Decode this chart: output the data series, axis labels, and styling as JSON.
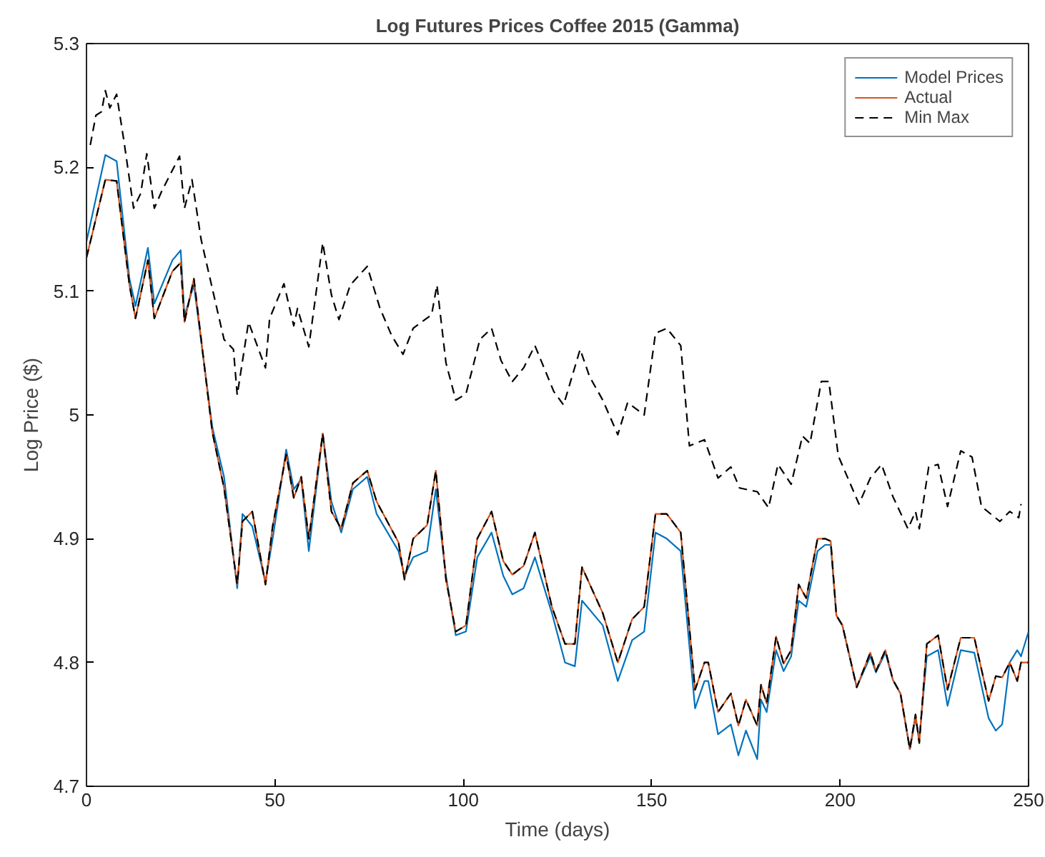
{
  "chart_data": {
    "type": "line",
    "title": "Log Futures Prices Coffee 2015 (Gamma)",
    "xlabel": "Time (days)",
    "ylabel": "Log Price ($)",
    "x": [
      0,
      5,
      8,
      11.4,
      13,
      16.3,
      18,
      22.8,
      25,
      26,
      28.5,
      33.4,
      36.5,
      40,
      41.4,
      44,
      47.5,
      49.4,
      53,
      55,
      57,
      59,
      62.7,
      65,
      67.6,
      70.7,
      74.5,
      77,
      82.8,
      84.4,
      86.7,
      90.4,
      92.7,
      95.4,
      98,
      100.7,
      103.7,
      107.5,
      110.6,
      113,
      116,
      119,
      123.5,
      127,
      129.6,
      131.5,
      137,
      141,
      144.8,
      148,
      151,
      154,
      157.7,
      161.5,
      164,
      165,
      167.6,
      171,
      173,
      175,
      178,
      179,
      180.5,
      183,
      185,
      187,
      189,
      191,
      194,
      196,
      197.5,
      199,
      200.6,
      204.4,
      208,
      209.5,
      212,
      214,
      216,
      218.5,
      220,
      221,
      223,
      226,
      228.5,
      232,
      235.6,
      239.4,
      241.3,
      243,
      245,
      247,
      248,
      250
    ],
    "series": [
      {
        "name": "Model Prices",
        "color": "#0072bd",
        "line_style": "solid",
        "values": [
          5.14,
          5.21,
          5.205,
          5.11,
          5.088,
          5.135,
          5.09,
          5.125,
          5.133,
          5.08,
          5.105,
          4.99,
          4.95,
          4.86,
          4.92,
          4.91,
          4.865,
          4.9,
          4.972,
          4.94,
          4.948,
          4.89,
          4.985,
          4.93,
          4.905,
          4.94,
          4.95,
          4.92,
          4.89,
          4.87,
          4.885,
          4.89,
          4.94,
          4.87,
          4.822,
          4.825,
          4.885,
          4.905,
          4.87,
          4.855,
          4.86,
          4.885,
          4.84,
          4.8,
          4.797,
          4.85,
          4.83,
          4.785,
          4.818,
          4.825,
          4.905,
          4.9,
          4.89,
          4.763,
          4.785,
          4.785,
          4.742,
          4.75,
          4.725,
          4.745,
          4.722,
          4.77,
          4.76,
          4.81,
          4.793,
          4.805,
          4.85,
          4.845,
          4.89,
          4.895,
          4.895,
          4.838,
          4.83,
          4.78,
          4.805,
          4.792,
          4.808,
          4.786,
          4.775,
          4.73,
          4.755,
          4.738,
          4.805,
          4.81,
          4.765,
          4.81,
          4.808,
          4.755,
          4.745,
          4.75,
          4.8,
          4.81,
          4.805,
          4.825
        ]
      },
      {
        "name": "Actual",
        "color": "#d95319",
        "line_style": "solid",
        "values": [
          5.127,
          5.19,
          5.189,
          5.105,
          5.078,
          5.125,
          5.078,
          5.116,
          5.123,
          5.075,
          5.11,
          4.986,
          4.941,
          4.863,
          4.914,
          4.922,
          4.863,
          4.91,
          4.968,
          4.933,
          4.95,
          4.9,
          4.985,
          4.922,
          4.908,
          4.945,
          4.955,
          4.93,
          4.897,
          4.867,
          4.9,
          4.911,
          4.955,
          4.867,
          4.825,
          4.83,
          4.9,
          4.922,
          4.882,
          4.871,
          4.878,
          4.905,
          4.845,
          4.815,
          4.815,
          4.877,
          4.84,
          4.8,
          4.835,
          4.845,
          4.92,
          4.92,
          4.905,
          4.778,
          4.8,
          4.8,
          4.76,
          4.775,
          4.749,
          4.77,
          4.749,
          4.782,
          4.767,
          4.821,
          4.799,
          4.81,
          4.863,
          4.852,
          4.9,
          4.9,
          4.898,
          4.838,
          4.83,
          4.78,
          4.808,
          4.793,
          4.81,
          4.786,
          4.775,
          4.73,
          4.758,
          4.735,
          4.815,
          4.822,
          4.778,
          4.82,
          4.82,
          4.769,
          4.789,
          4.788,
          4.8,
          4.785,
          4.8,
          4.8
        ]
      },
      {
        "name": "Min Max",
        "color": "#000000",
        "line_style": "dashed",
        "x": [
          1,
          2.5,
          4,
          5,
          6.2,
          8,
          10,
          12.5,
          14.4,
          16,
          18,
          20,
          24.7,
          26,
          28,
          30.4,
          34,
          36.5,
          39,
          40,
          43,
          47.5,
          48.6,
          52.4,
          55,
          56,
          59,
          62.7,
          65,
          67,
          70,
          74.5,
          77.9,
          81,
          84,
          86.7,
          91.6,
          93,
          95.4,
          98,
          100.7,
          104.4,
          107.5,
          110,
          113,
          116,
          119,
          124,
          126.6,
          131,
          133.5,
          137,
          141,
          143.6,
          148,
          151,
          154,
          157.7,
          160,
          164,
          167.6,
          171,
          173.3,
          178,
          181,
          183.5,
          187,
          190,
          192,
          195,
          197,
          199.5,
          205,
          208,
          211,
          214,
          218,
          220,
          221,
          223.5,
          226,
          228.5,
          232,
          235,
          237.5,
          242.4,
          245,
          247.4,
          248
        ],
        "values": [
          5.218,
          5.242,
          5.245,
          5.262,
          5.248,
          5.259,
          5.22,
          5.167,
          5.179,
          5.211,
          5.167,
          5.181,
          5.209,
          5.167,
          5.19,
          5.142,
          5.094,
          5.061,
          5.053,
          5.016,
          5.075,
          5.038,
          5.078,
          5.106,
          5.072,
          5.086,
          5.055,
          5.139,
          5.097,
          5.077,
          5.105,
          5.12,
          5.086,
          5.064,
          5.049,
          5.07,
          5.081,
          5.105,
          5.042,
          5.012,
          5.017,
          5.061,
          5.07,
          5.044,
          5.027,
          5.038,
          5.056,
          5.019,
          5.008,
          5.053,
          5.031,
          5.012,
          4.984,
          5.01,
          5.0,
          5.066,
          5.07,
          5.056,
          4.975,
          4.98,
          4.949,
          4.958,
          4.941,
          4.938,
          4.925,
          4.96,
          4.944,
          4.983,
          4.977,
          5.027,
          5.027,
          4.967,
          4.928,
          4.949,
          4.96,
          4.934,
          4.908,
          4.922,
          4.908,
          4.958,
          4.96,
          4.926,
          4.971,
          4.966,
          4.926,
          4.914,
          4.922,
          4.917,
          4.928
        ]
      },
      {
        "color": "#000000",
        "line_style": "dashed",
        "values": [
          5.127,
          5.19,
          5.189,
          5.105,
          5.078,
          5.125,
          5.078,
          5.116,
          5.123,
          5.075,
          5.11,
          4.986,
          4.941,
          4.863,
          4.914,
          4.922,
          4.863,
          4.91,
          4.968,
          4.933,
          4.95,
          4.9,
          4.985,
          4.922,
          4.908,
          4.945,
          4.955,
          4.93,
          4.897,
          4.867,
          4.9,
          4.911,
          4.955,
          4.867,
          4.825,
          4.83,
          4.9,
          4.922,
          4.882,
          4.871,
          4.878,
          4.905,
          4.845,
          4.815,
          4.815,
          4.877,
          4.84,
          4.8,
          4.835,
          4.845,
          4.92,
          4.92,
          4.905,
          4.778,
          4.8,
          4.8,
          4.76,
          4.775,
          4.749,
          4.77,
          4.749,
          4.782,
          4.767,
          4.821,
          4.799,
          4.81,
          4.863,
          4.852,
          4.9,
          4.9,
          4.898,
          4.838,
          4.83,
          4.78,
          4.808,
          4.793,
          4.81,
          4.786,
          4.775,
          4.73,
          4.758,
          4.735,
          4.815,
          4.822,
          4.778,
          4.82,
          4.82,
          4.769,
          4.789,
          4.788,
          4.8,
          4.785,
          4.8,
          4.8
        ]
      }
    ],
    "xlim": [
      0,
      250
    ],
    "xticks": [
      0,
      50,
      100,
      150,
      200,
      250
    ],
    "ylim": [
      4.7,
      5.3
    ],
    "yticks": [
      4.7,
      4.8,
      4.9,
      {
        "value": 5,
        "label": "5"
      },
      5.1,
      5.2,
      5.3
    ],
    "grid": false,
    "legend": "top right",
    "marker": "none"
  }
}
